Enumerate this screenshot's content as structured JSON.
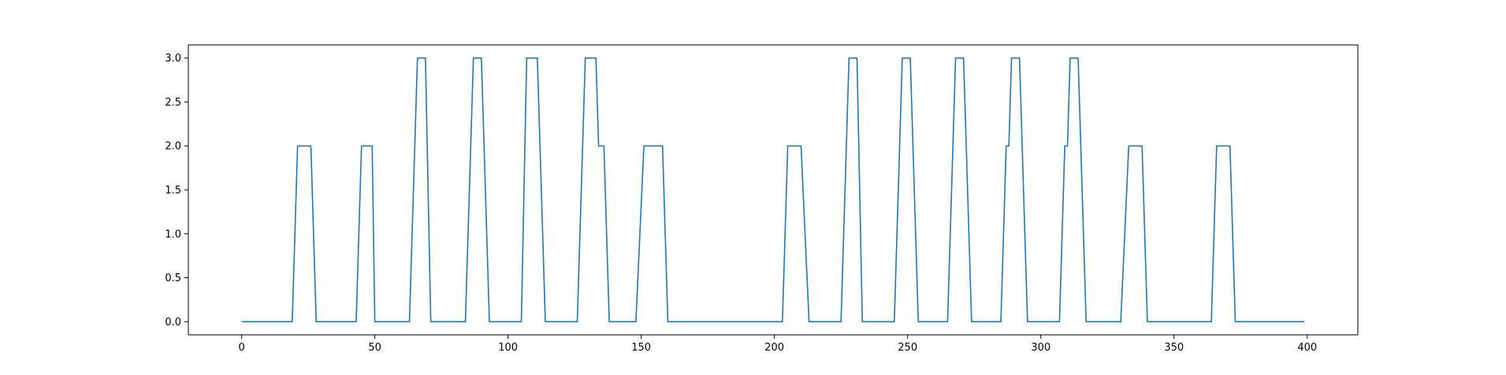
{
  "chart_data": {
    "type": "line",
    "title": "",
    "xlabel": "",
    "ylabel": "",
    "xlim": [
      -20,
      419
    ],
    "ylim": [
      -0.15,
      3.15
    ],
    "xticks": [
      0,
      50,
      100,
      150,
      200,
      250,
      300,
      350,
      400
    ],
    "xtick_labels": [
      "0",
      "50",
      "100",
      "150",
      "200",
      "250",
      "300",
      "350",
      "400"
    ],
    "yticks": [
      0.0,
      0.5,
      1.0,
      1.5,
      2.0,
      2.5,
      3.0
    ],
    "ytick_labels": [
      "0.0",
      "0.5",
      "1.0",
      "1.5",
      "2.0",
      "2.5",
      "3.0"
    ],
    "grid": false,
    "legend": "none",
    "series": [
      {
        "color": "#1f77b4",
        "x": [
          0,
          19,
          21,
          26,
          28,
          43,
          45,
          49,
          50,
          63,
          66,
          69,
          71,
          84,
          87,
          90,
          93,
          105,
          107,
          111,
          114,
          126,
          129,
          133,
          134,
          136,
          138,
          148,
          151,
          158,
          160,
          203,
          205,
          210,
          213,
          225,
          228,
          231,
          233,
          245,
          248,
          251,
          254,
          265,
          268,
          271,
          274,
          285,
          287,
          288,
          289,
          292,
          295,
          307,
          309,
          310,
          311,
          314,
          317,
          330,
          333,
          338,
          340,
          364,
          366,
          371,
          373,
          399
        ],
        "y": [
          0,
          0,
          2,
          2,
          0,
          0,
          2,
          2,
          0,
          0,
          3,
          3,
          0,
          0,
          3,
          3,
          0,
          0,
          3,
          3,
          0,
          0,
          3,
          3,
          2,
          2,
          0,
          0,
          2,
          2,
          0,
          0,
          2,
          2,
          0,
          0,
          3,
          3,
          0,
          0,
          3,
          3,
          0,
          0,
          3,
          3,
          0,
          0,
          2,
          2,
          3,
          3,
          0,
          0,
          2,
          2,
          3,
          3,
          0,
          0,
          2,
          2,
          0,
          0,
          2,
          2,
          0,
          0
        ]
      }
    ]
  }
}
